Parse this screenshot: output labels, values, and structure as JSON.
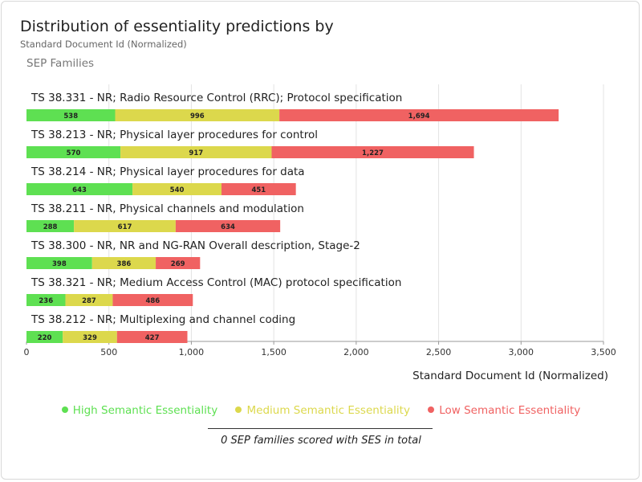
{
  "chart_data": {
    "type": "bar",
    "orientation": "horizontal",
    "stacked": true,
    "title": "Distribution of essentiality predictions by",
    "subtitle": "Standard Document Id (Normalized)",
    "ylabel": "SEP Families",
    "xlabel": "Standard Document Id (Normalized)",
    "xlim": [
      0,
      3500
    ],
    "xticks": [
      0,
      500,
      1000,
      1500,
      2000,
      2500,
      3000,
      3500
    ],
    "xtick_labels": [
      "0",
      "500",
      "1,000",
      "1,500",
      "2,000",
      "2,500",
      "3,000",
      "3,500"
    ],
    "grid": true,
    "legend_position": "bottom",
    "categories": [
      "TS 38.331 - NR; Radio Resource Control (RRC); Protocol specification",
      "TS 38.213 - NR; Physical layer procedures for control",
      "TS 38.214 - NR; Physical layer procedures for data",
      "TS 38.211 - NR, Physical channels and modulation",
      "TS 38.300 - NR, NR and NG-RAN Overall description, Stage-2",
      "TS 38.321 - NR; Medium Access Control (MAC) protocol specification",
      "TS 38.212 - NR; Multiplexing and channel coding"
    ],
    "series": [
      {
        "name": "High Semantic Essentiality",
        "color": "#5ee052",
        "values": [
          538,
          570,
          643,
          288,
          398,
          236,
          220
        ],
        "labels": [
          "538",
          "570",
          "643",
          "288",
          "398",
          "236",
          "220"
        ]
      },
      {
        "name": "Medium Semantic Essentiality",
        "color": "#dcd84c",
        "values": [
          996,
          917,
          540,
          617,
          386,
          287,
          329
        ],
        "labels": [
          "996",
          "917",
          "540",
          "617",
          "386",
          "287",
          "329"
        ]
      },
      {
        "name": "Low Semantic Essentiality",
        "color": "#f06262",
        "values": [
          1694,
          1227,
          451,
          634,
          269,
          486,
          427
        ],
        "labels": [
          "1,694",
          "1,227",
          "451",
          "634",
          "269",
          "486",
          "427"
        ]
      }
    ]
  },
  "legend_text_colors": [
    "#5ee052",
    "#dcd84c",
    "#f06262"
  ],
  "footer": "0 SEP families scored with SES in total"
}
